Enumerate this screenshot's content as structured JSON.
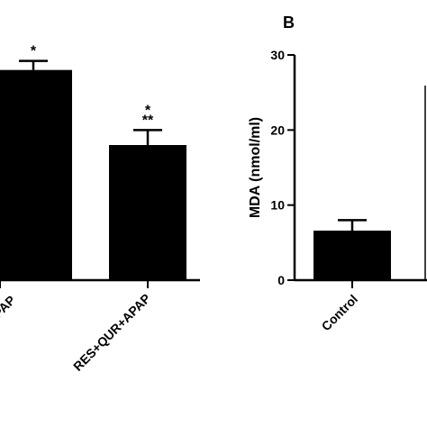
{
  "chart_data": [
    {
      "panel_label": "",
      "type": "bar",
      "categories": [
        "APAP",
        "RES+QUR+APAP"
      ],
      "values": [
        28,
        18
      ],
      "errors": [
        1.2,
        2.0
      ],
      "annotations": [
        {
          "category": "APAP",
          "lines": [
            "*"
          ]
        },
        {
          "category": "RES+QUR+APAP",
          "lines": [
            "*",
            "**"
          ]
        }
      ],
      "ylim": [
        0,
        30
      ],
      "grid": false,
      "bar_color": "#000000"
    },
    {
      "panel_label": "B",
      "type": "bar",
      "categories": [
        "Control"
      ],
      "values": [
        6.6
      ],
      "errors": [
        1.4
      ],
      "ylabel": "MDA (nmol/ml)",
      "yticks": [
        "0",
        "10",
        "20",
        "30"
      ],
      "ylim": [
        0,
        30
      ],
      "grid": false,
      "bar_color": "#000000"
    }
  ]
}
